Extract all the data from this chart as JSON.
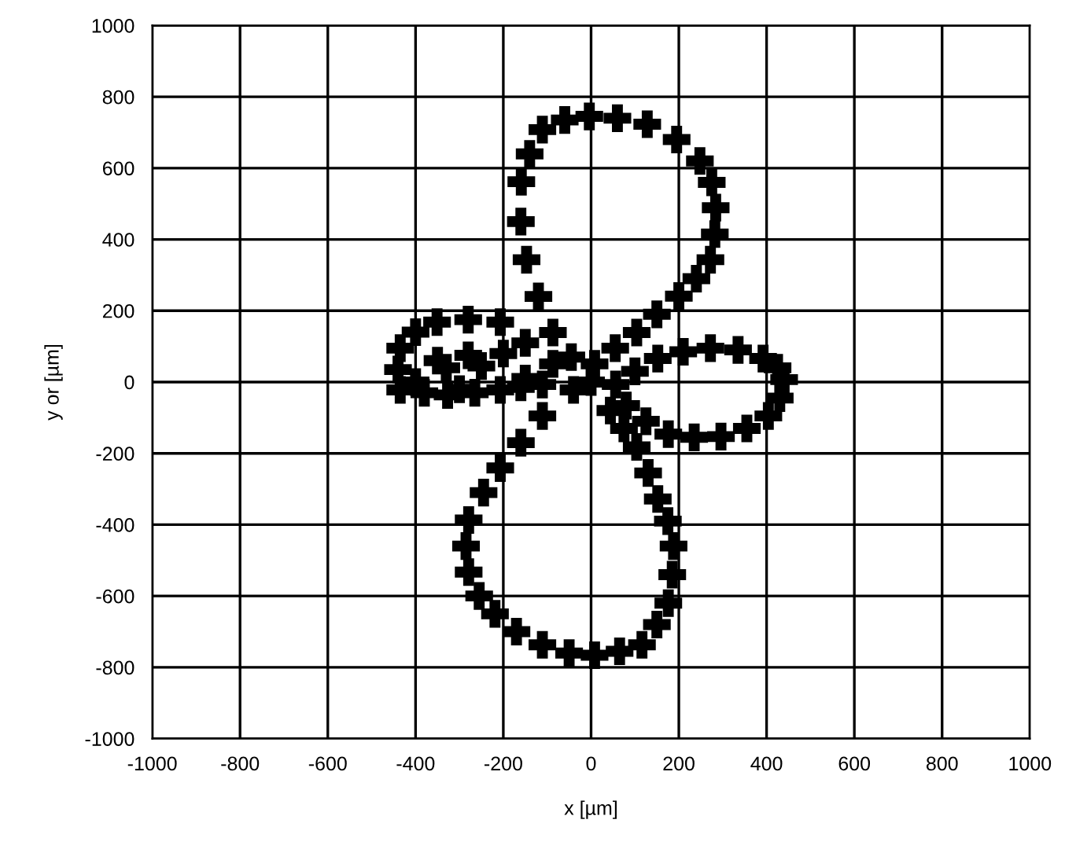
{
  "chart_data": {
    "type": "scatter",
    "xlabel": "x [µm]",
    "ylabel": "y or [µm]",
    "xlim": [
      -1000,
      1000
    ],
    "ylim": [
      -1000,
      1000
    ],
    "xticks": [
      -1000,
      -800,
      -600,
      -400,
      -200,
      0,
      200,
      400,
      600,
      800,
      1000
    ],
    "yticks": [
      -1000,
      -800,
      -600,
      -400,
      -200,
      0,
      200,
      400,
      600,
      800,
      1000
    ],
    "grid": true,
    "marker": "cross",
    "series": [
      {
        "color": "#000000",
        "x": [
          0,
          -45,
          -87,
          -120,
          -147,
          -160,
          -159,
          -140,
          -111,
          -60,
          -4,
          60,
          128,
          195,
          248,
          275,
          284,
          282,
          272,
          240,
          200,
          150,
          104,
          55,
          8,
          -40,
          56,
          100,
          152,
          210,
          272,
          335,
          392,
          425,
          440,
          430,
          404,
          355,
          296,
          235,
          176,
          125,
          80,
          -111,
          -160,
          -207,
          -245,
          -279,
          -285,
          -279,
          -255,
          -219,
          -170,
          -111,
          -50,
          8,
          65,
          116,
          150,
          176,
          185,
          188,
          175,
          152,
          130,
          104,
          75,
          44,
          -87,
          -150,
          -207,
          -280,
          -351,
          -400,
          -435,
          -440,
          -435,
          -380,
          -327,
          -265,
          -207,
          -160,
          -111,
          -200,
          -280,
          -350,
          -400,
          -300,
          -150,
          -250,
          -330
        ],
        "values": [
          0,
          70,
          139,
          240,
          343,
          450,
          562,
          640,
          708,
          735,
          745,
          740,
          723,
          680,
          620,
          560,
          489,
          415,
          343,
          290,
          241,
          190,
          139,
          95,
          51,
          -22,
          -7,
          30,
          66,
          85,
          95,
          90,
          66,
          40,
          7,
          -45,
          -95,
          -130,
          -153,
          -155,
          -146,
          -110,
          -66,
          -95,
          -170,
          -241,
          -310,
          -387,
          -460,
          -533,
          -600,
          -650,
          -700,
          -737,
          -760,
          -766,
          -755,
          -737,
          -680,
          -620,
          -540,
          -460,
          -390,
          -328,
          -255,
          -182,
          -130,
          -80,
          51,
          110,
          168,
          175,
          168,
          140,
          95,
          35,
          -22,
          -30,
          -36,
          -30,
          -22,
          -15,
          -7,
          80,
          75,
          60,
          0,
          -20,
          10,
          45,
          40
        ]
      }
    ]
  }
}
